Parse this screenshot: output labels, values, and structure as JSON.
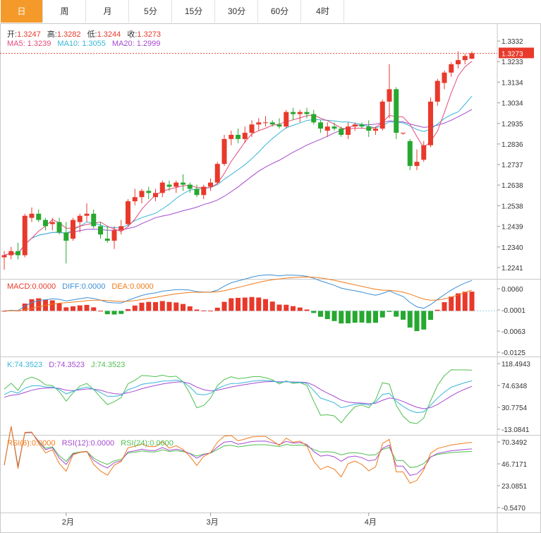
{
  "tabs": [
    "日",
    "周",
    "月",
    "5分",
    "15分",
    "30分",
    "60分",
    "4时"
  ],
  "active_tab": 0,
  "ohlc_legend": {
    "open_label": "开:",
    "open": "1.3247",
    "high_label": "高:",
    "high": "1.3282",
    "low_label": "低:",
    "low": "1.3244",
    "close_label": "收:",
    "close": "1.3273"
  },
  "ma_legend": {
    "ma5_label": "MA5:",
    "ma5": "1.3239",
    "ma10_label": "MA10:",
    "ma10": "1.3055",
    "ma20_label": "MA20:",
    "ma20": "1.2999"
  },
  "macd_legend": {
    "macd_label": "MACD:",
    "macd": "0.0000",
    "diff_label": "DIFF:",
    "diff": "0.0000",
    "dea_label": "DEA:",
    "dea": "0.0000"
  },
  "kdj_legend": {
    "k_label": "K:",
    "k": "74.3523",
    "d_label": "D:",
    "d": "74.3523",
    "j_label": "J:",
    "j": "74.3523"
  },
  "rsi_legend": {
    "rsi6_label": "RSI(6):",
    "rsi6": "0.0000",
    "rsi12_label": "RSI(12):",
    "rsi12": "0.0000",
    "rsi24_label": "RSI(24):",
    "rsi24": "0.0000"
  },
  "colors": {
    "up": "#e8392b",
    "down": "#27a830",
    "ma5": "#e44b7a",
    "ma10": "#38b6d8",
    "ma20": "#a44bd0",
    "macd_pos": "#e8392b",
    "macd_neg": "#27a830",
    "diff": "#3b8fd6",
    "dea": "#f07a1a",
    "k": "#38b6d8",
    "d": "#a44bd0",
    "j": "#4fbf4f",
    "rsi6": "#f07a1a",
    "rsi12": "#a44bd0",
    "rsi24": "#4fbf4f",
    "tab_active": "#f39a2b"
  },
  "chart_data": {
    "type": "candlestick",
    "x_labels": [
      "2月",
      "3月",
      "4月"
    ],
    "price_axis": {
      "ticks": [
        "1.3332",
        "1.3233",
        "1.3134",
        "1.3034",
        "1.2935",
        "1.2836",
        "1.2737",
        "1.2638",
        "1.2538",
        "1.2439",
        "1.2340",
        "1.2241"
      ],
      "range": [
        1.221,
        1.338
      ]
    },
    "current_price": "1.3273",
    "candles": [
      [
        1.229,
        1.232,
        1.223,
        1.23
      ],
      [
        1.23,
        1.234,
        1.228,
        1.232
      ],
      [
        1.232,
        1.236,
        1.228,
        1.23
      ],
      [
        1.23,
        1.25,
        1.229,
        1.249
      ],
      [
        1.248,
        1.253,
        1.246,
        1.25
      ],
      [
        1.25,
        1.252,
        1.246,
        1.247
      ],
      [
        1.247,
        1.248,
        1.242,
        1.244
      ],
      [
        1.245,
        1.248,
        1.242,
        1.246
      ],
      [
        1.246,
        1.248,
        1.24,
        1.241
      ],
      [
        1.241,
        1.246,
        1.226,
        1.237
      ],
      [
        1.238,
        1.248,
        1.237,
        1.247
      ],
      [
        1.246,
        1.25,
        1.241,
        1.249
      ],
      [
        1.249,
        1.255,
        1.246,
        1.25
      ],
      [
        1.25,
        1.252,
        1.243,
        1.244
      ],
      [
        1.244,
        1.246,
        1.238,
        1.24
      ],
      [
        1.238,
        1.244,
        1.236,
        1.237
      ],
      [
        1.237,
        1.244,
        1.233,
        1.242
      ],
      [
        1.242,
        1.247,
        1.24,
        1.244
      ],
      [
        1.245,
        1.257,
        1.244,
        1.256
      ],
      [
        1.256,
        1.262,
        1.254,
        1.258
      ],
      [
        1.258,
        1.262,
        1.255,
        1.261
      ],
      [
        1.261,
        1.263,
        1.257,
        1.26
      ],
      [
        1.258,
        1.262,
        1.256,
        1.26
      ],
      [
        1.26,
        1.266,
        1.258,
        1.265
      ],
      [
        1.264,
        1.266,
        1.261,
        1.263
      ],
      [
        1.263,
        1.266,
        1.26,
        1.265
      ],
      [
        1.265,
        1.269,
        1.261,
        1.264
      ],
      [
        1.264,
        1.265,
        1.26,
        1.262
      ],
      [
        1.262,
        1.264,
        1.258,
        1.259
      ],
      [
        1.259,
        1.264,
        1.257,
        1.263
      ],
      [
        1.263,
        1.267,
        1.261,
        1.265
      ],
      [
        1.265,
        1.275,
        1.264,
        1.274
      ],
      [
        1.274,
        1.288,
        1.273,
        1.286
      ],
      [
        1.286,
        1.29,
        1.283,
        1.288
      ],
      [
        1.288,
        1.291,
        1.284,
        1.286
      ],
      [
        1.286,
        1.292,
        1.284,
        1.289
      ],
      [
        1.289,
        1.295,
        1.287,
        1.293
      ],
      [
        1.293,
        1.296,
        1.29,
        1.294
      ],
      [
        1.294,
        1.297,
        1.292,
        1.294
      ],
      [
        1.294,
        1.295,
        1.292,
        1.293
      ],
      [
        1.293,
        1.296,
        1.291,
        1.292
      ],
      [
        1.292,
        1.3,
        1.291,
        1.299
      ],
      [
        1.299,
        1.301,
        1.295,
        1.298
      ],
      [
        1.298,
        1.3,
        1.294,
        1.299
      ],
      [
        1.299,
        1.301,
        1.296,
        1.298
      ],
      [
        1.298,
        1.3,
        1.293,
        1.294
      ],
      [
        1.294,
        1.295,
        1.289,
        1.291
      ],
      [
        1.29,
        1.294,
        1.287,
        1.292
      ],
      [
        1.292,
        1.294,
        1.29,
        1.291
      ],
      [
        1.291,
        1.292,
        1.287,
        1.288
      ],
      [
        1.288,
        1.294,
        1.286,
        1.292
      ],
      [
        1.292,
        1.294,
        1.29,
        1.293
      ],
      [
        1.293,
        1.294,
        1.291,
        1.292
      ],
      [
        1.292,
        1.295,
        1.287,
        1.29
      ],
      [
        1.29,
        1.292,
        1.288,
        1.291
      ],
      [
        1.291,
        1.305,
        1.29,
        1.304
      ],
      [
        1.304,
        1.322,
        1.296,
        1.31
      ],
      [
        1.31,
        1.311,
        1.286,
        1.289
      ],
      [
        1.289,
        1.289,
        1.288,
        1.289
      ],
      [
        1.285,
        1.286,
        1.271,
        1.273
      ],
      [
        1.273,
        1.281,
        1.271,
        1.275
      ],
      [
        1.276,
        1.285,
        1.275,
        1.283
      ],
      [
        1.283,
        1.306,
        1.282,
        1.304
      ],
      [
        1.304,
        1.315,
        1.302,
        1.314
      ],
      [
        1.313,
        1.319,
        1.31,
        1.318
      ],
      [
        1.318,
        1.323,
        1.316,
        1.322
      ],
      [
        1.322,
        1.3282,
        1.32,
        1.324
      ],
      [
        1.324,
        1.327,
        1.322,
        1.326
      ],
      [
        1.3247,
        1.3282,
        1.3244,
        1.3273
      ]
    ],
    "macd": {
      "range": [
        -0.014,
        0.0075
      ],
      "ticks": [
        "0.0060",
        "-0.0001",
        "-0.0063",
        "-0.0125"
      ]
    },
    "kdj": {
      "range": [
        -20,
        130
      ],
      "ticks": [
        "118.4943",
        "74.6348",
        "30.7754",
        "-13.0841"
      ]
    },
    "rsi": {
      "range": [
        -5,
        80
      ],
      "ticks": [
        "70.3492",
        "46.7171",
        "23.0851",
        "-0.5470"
      ]
    }
  }
}
